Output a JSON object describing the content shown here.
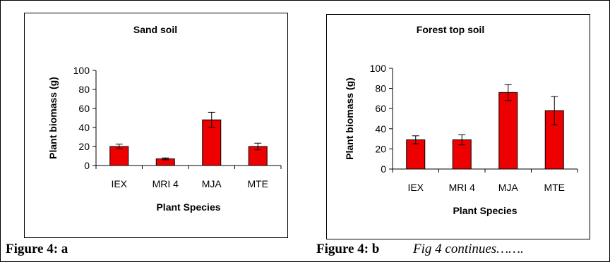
{
  "captions": {
    "a": "Figure 4: a",
    "b": "Figure 4: b",
    "continues": "Fig 4 continues……."
  },
  "chart_data": [
    {
      "type": "bar",
      "title": "Sand soil",
      "xlabel": "Plant Species",
      "ylabel": "Plant biomass (g)",
      "categories": [
        "IEX",
        "MRI 4",
        "MJA",
        "MTE"
      ],
      "values": [
        20,
        7,
        48,
        20
      ],
      "error": [
        2.5,
        1,
        8,
        3.5
      ],
      "ylim": [
        0,
        100
      ],
      "yticks": [
        0,
        20,
        40,
        60,
        80,
        100
      ],
      "bar_color": "#ee0000",
      "grid": false
    },
    {
      "type": "bar",
      "title": "Forest top soil",
      "xlabel": "Plant Species",
      "ylabel": "Plant biomass (g)",
      "categories": [
        "IEX",
        "MRI 4",
        "MJA",
        "MTE"
      ],
      "values": [
        29,
        29,
        76,
        58
      ],
      "error": [
        4,
        5,
        8,
        14
      ],
      "ylim": [
        0,
        100
      ],
      "yticks": [
        0,
        20,
        40,
        60,
        80,
        100
      ],
      "bar_color": "#ee0000",
      "grid": false
    }
  ]
}
